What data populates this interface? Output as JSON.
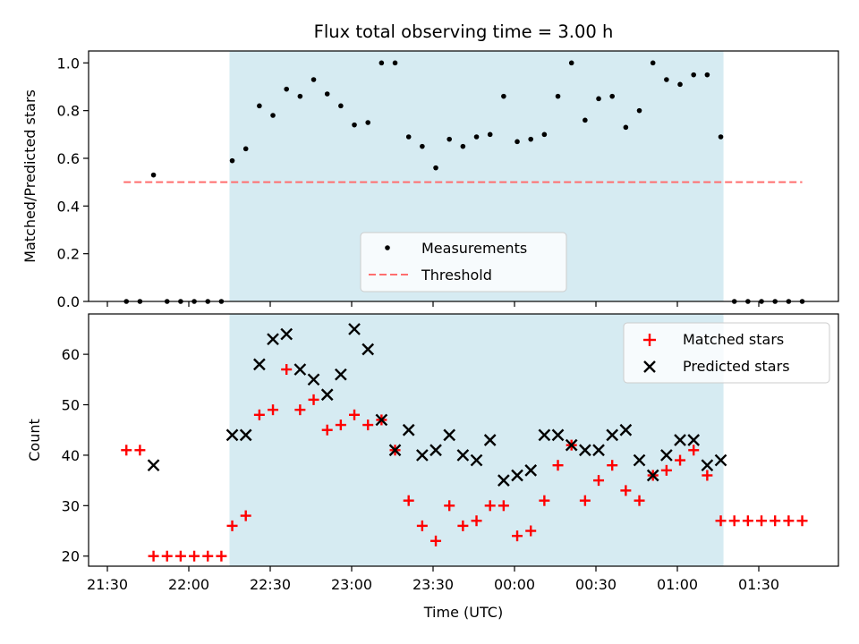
{
  "chart_data": [
    {
      "type": "scatter",
      "title": "Flux total observing time = 3.00 h",
      "ylabel": "Matched/Predicted stars",
      "ylim": [
        0,
        1.05
      ],
      "yticks": [
        "0.0",
        "0.2",
        "0.4",
        "0.6",
        "0.8",
        "1.0"
      ],
      "shaded_band": {
        "from": "22:15",
        "to": "01:17",
        "color": "#add8e6"
      },
      "legend": {
        "position": "lower-center",
        "entries": [
          "Measurements",
          "Threshold"
        ]
      },
      "threshold": {
        "name": "Threshold",
        "value": 0.5,
        "from": "21:36",
        "to": "01:46",
        "color": "#ff6e6e"
      },
      "series": [
        {
          "name": "Measurements",
          "color": "#000000",
          "points": [
            [
              "21:37",
              0.0
            ],
            [
              "21:42",
              0.0
            ],
            [
              "21:47",
              0.53
            ],
            [
              "21:52",
              0.0
            ],
            [
              "21:57",
              0.0
            ],
            [
              "22:02",
              0.0
            ],
            [
              "22:07",
              0.0
            ],
            [
              "22:12",
              0.0
            ],
            [
              "22:16",
              0.59
            ],
            [
              "22:21",
              0.64
            ],
            [
              "22:26",
              0.82
            ],
            [
              "22:31",
              0.78
            ],
            [
              "22:36",
              0.89
            ],
            [
              "22:41",
              0.86
            ],
            [
              "22:46",
              0.93
            ],
            [
              "22:51",
              0.87
            ],
            [
              "22:56",
              0.82
            ],
            [
              "23:01",
              0.74
            ],
            [
              "23:06",
              0.75
            ],
            [
              "23:11",
              1.0
            ],
            [
              "23:16",
              1.0
            ],
            [
              "23:21",
              0.69
            ],
            [
              "23:26",
              0.65
            ],
            [
              "23:31",
              0.56
            ],
            [
              "23:36",
              0.68
            ],
            [
              "23:41",
              0.65
            ],
            [
              "23:46",
              0.69
            ],
            [
              "23:51",
              0.7
            ],
            [
              "23:56",
              0.86
            ],
            [
              "00:01",
              0.67
            ],
            [
              "00:06",
              0.68
            ],
            [
              "00:11",
              0.7
            ],
            [
              "00:16",
              0.86
            ],
            [
              "00:21",
              1.0
            ],
            [
              "00:26",
              0.76
            ],
            [
              "00:31",
              0.85
            ],
            [
              "00:36",
              0.86
            ],
            [
              "00:41",
              0.73
            ],
            [
              "00:46",
              0.8
            ],
            [
              "00:51",
              1.0
            ],
            [
              "00:56",
              0.93
            ],
            [
              "01:01",
              0.91
            ],
            [
              "01:06",
              0.95
            ],
            [
              "01:11",
              0.95
            ],
            [
              "01:16",
              0.69
            ],
            [
              "01:21",
              0.0
            ],
            [
              "01:26",
              0.0
            ],
            [
              "01:31",
              0.0
            ],
            [
              "01:36",
              0.0
            ],
            [
              "01:41",
              0.0
            ],
            [
              "01:46",
              0.0
            ]
          ]
        }
      ]
    },
    {
      "type": "scatter",
      "xlabel": "Time (UTC)",
      "ylabel": "Count",
      "ylim": [
        18,
        68
      ],
      "yticks": [
        "20",
        "30",
        "40",
        "50",
        "60"
      ],
      "xticks": [
        "21:30",
        "22:00",
        "22:30",
        "23:00",
        "23:30",
        "00:00",
        "00:30",
        "01:00",
        "01:30"
      ],
      "shaded_band": {
        "from": "22:15",
        "to": "01:17",
        "color": "#add8e6"
      },
      "legend": {
        "position": "top-right",
        "entries": [
          "Matched stars",
          "Predicted stars"
        ]
      },
      "series": [
        {
          "name": "Matched stars",
          "marker": "plus",
          "color": "#ff0000",
          "points": [
            [
              "21:37",
              41
            ],
            [
              "21:42",
              41
            ],
            [
              "21:47",
              20
            ],
            [
              "21:52",
              20
            ],
            [
              "21:57",
              20
            ],
            [
              "22:02",
              20
            ],
            [
              "22:07",
              20
            ],
            [
              "22:12",
              20
            ],
            [
              "22:16",
              26
            ],
            [
              "22:21",
              28
            ],
            [
              "22:26",
              48
            ],
            [
              "22:31",
              49
            ],
            [
              "22:36",
              57
            ],
            [
              "22:41",
              49
            ],
            [
              "22:46",
              51
            ],
            [
              "22:51",
              45
            ],
            [
              "22:56",
              46
            ],
            [
              "23:01",
              48
            ],
            [
              "23:06",
              46
            ],
            [
              "23:11",
              47
            ],
            [
              "23:16",
              41
            ],
            [
              "23:21",
              31
            ],
            [
              "23:26",
              26
            ],
            [
              "23:31",
              23
            ],
            [
              "23:36",
              30
            ],
            [
              "23:41",
              26
            ],
            [
              "23:46",
              27
            ],
            [
              "23:51",
              30
            ],
            [
              "23:56",
              30
            ],
            [
              "00:01",
              24
            ],
            [
              "00:06",
              25
            ],
            [
              "00:11",
              31
            ],
            [
              "00:16",
              38
            ],
            [
              "00:21",
              42
            ],
            [
              "00:26",
              31
            ],
            [
              "00:31",
              35
            ],
            [
              "00:36",
              38
            ],
            [
              "00:41",
              33
            ],
            [
              "00:46",
              31
            ],
            [
              "00:51",
              36
            ],
            [
              "00:56",
              37
            ],
            [
              "01:01",
              39
            ],
            [
              "01:06",
              41
            ],
            [
              "01:11",
              36
            ],
            [
              "01:16",
              27
            ],
            [
              "01:21",
              27
            ],
            [
              "01:26",
              27
            ],
            [
              "01:31",
              27
            ],
            [
              "01:36",
              27
            ],
            [
              "01:41",
              27
            ],
            [
              "01:46",
              27
            ]
          ]
        },
        {
          "name": "Predicted stars",
          "marker": "x",
          "color": "#000000",
          "points": [
            [
              "21:47",
              38
            ],
            [
              "22:16",
              44
            ],
            [
              "22:21",
              44
            ],
            [
              "22:26",
              58
            ],
            [
              "22:31",
              63
            ],
            [
              "22:36",
              64
            ],
            [
              "22:41",
              57
            ],
            [
              "22:46",
              55
            ],
            [
              "22:51",
              52
            ],
            [
              "22:56",
              56
            ],
            [
              "23:01",
              65
            ],
            [
              "23:06",
              61
            ],
            [
              "23:11",
              47
            ],
            [
              "23:16",
              41
            ],
            [
              "23:21",
              45
            ],
            [
              "23:26",
              40
            ],
            [
              "23:31",
              41
            ],
            [
              "23:36",
              44
            ],
            [
              "23:41",
              40
            ],
            [
              "23:46",
              39
            ],
            [
              "23:51",
              43
            ],
            [
              "23:56",
              35
            ],
            [
              "00:01",
              36
            ],
            [
              "00:06",
              37
            ],
            [
              "00:11",
              44
            ],
            [
              "00:16",
              44
            ],
            [
              "00:21",
              42
            ],
            [
              "00:26",
              41
            ],
            [
              "00:31",
              41
            ],
            [
              "00:36",
              44
            ],
            [
              "00:41",
              45
            ],
            [
              "00:46",
              39
            ],
            [
              "00:51",
              36
            ],
            [
              "00:56",
              40
            ],
            [
              "01:01",
              43
            ],
            [
              "01:06",
              43
            ],
            [
              "01:11",
              38
            ],
            [
              "01:16",
              39
            ]
          ]
        }
      ]
    }
  ]
}
